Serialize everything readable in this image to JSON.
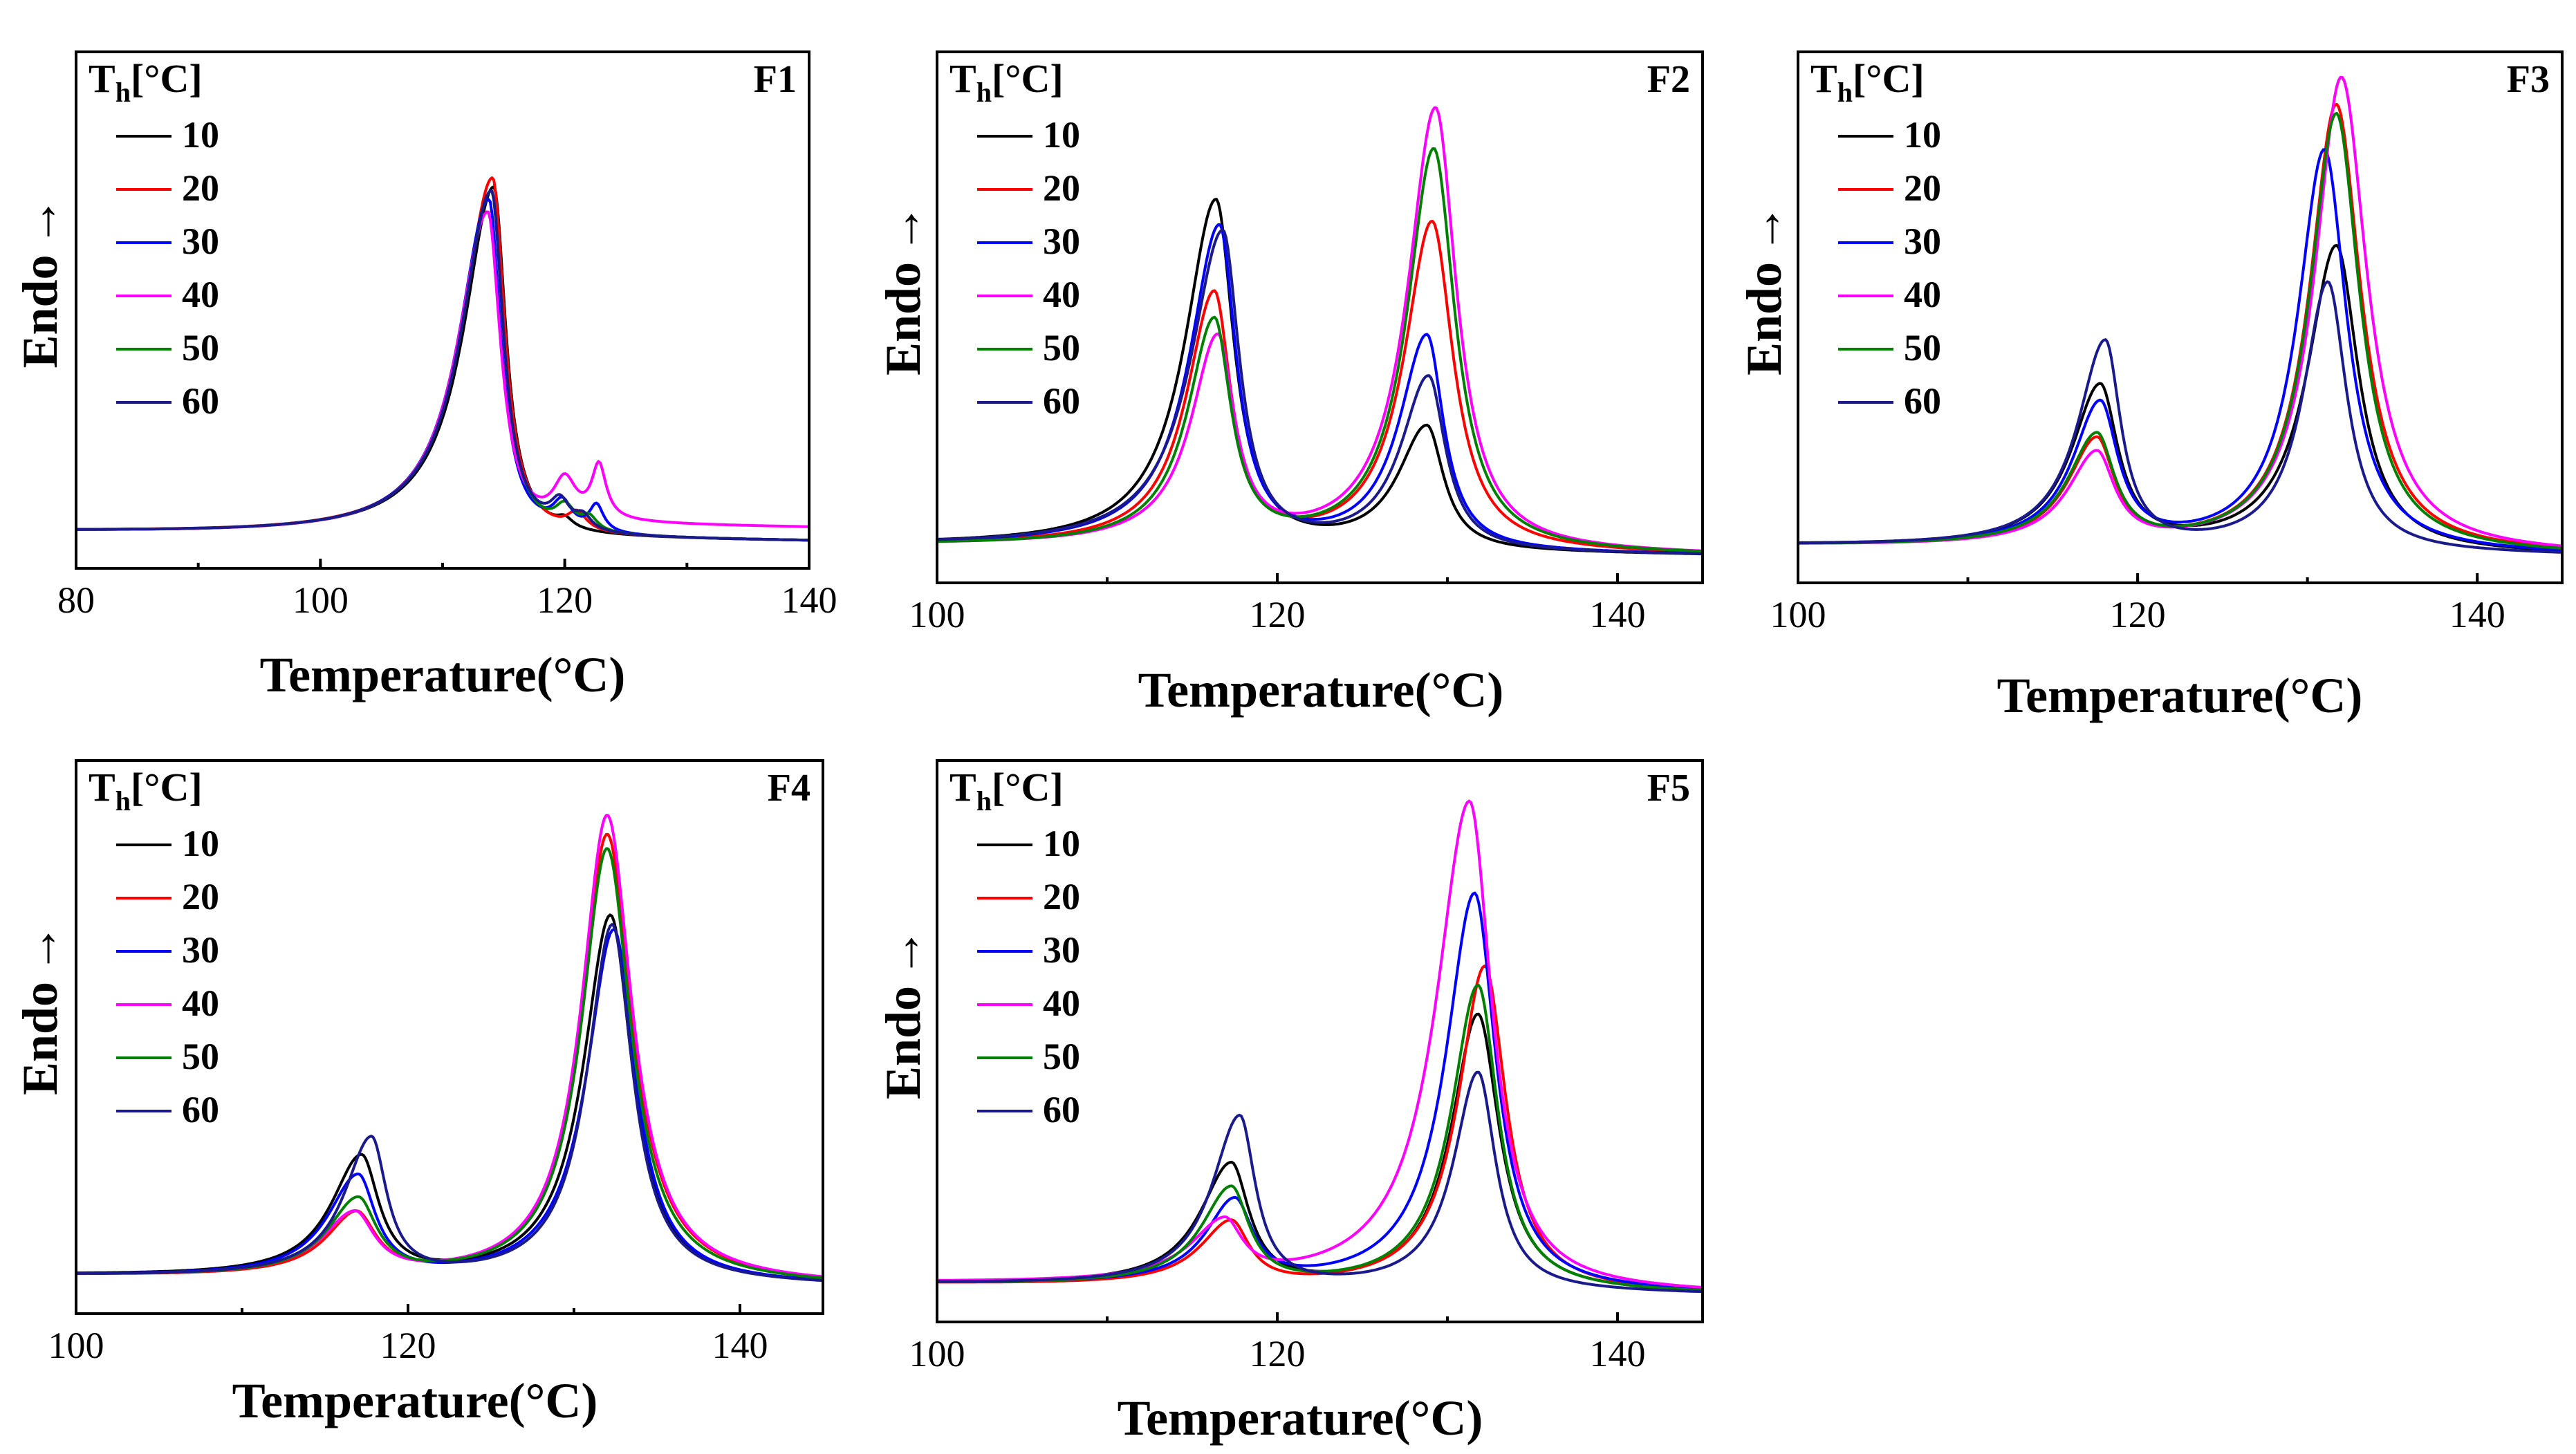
{
  "figure": {
    "legend_title": "T",
    "legend_title_sub": "h",
    "legend_title_unit": "[°C]"
  },
  "chart_data": [
    {
      "type": "line",
      "panel": "F1",
      "xlabel": "Temperature(°C)",
      "ylabel": "Endo",
      "ylabel_arrow": "→",
      "xlim": [
        80,
        140
      ],
      "xticks": [
        80,
        100,
        120,
        140
      ],
      "ylim": [
        0,
        1
      ],
      "legend_placement": "top-left",
      "series": [
        {
          "name": "10",
          "color": "#000000",
          "bg": 0.0,
          "peaks": [
            {
              "c": 114.2,
              "h": 0.79,
              "w": 3.8,
              "r": 1.5
            },
            {
              "c": 120.0,
              "h": 0.02,
              "w": 1.0,
              "r": 1.0
            }
          ]
        },
        {
          "name": "20",
          "color": "#ff0000",
          "bg": 0.0,
          "peaks": [
            {
              "c": 114.1,
              "h": 0.81,
              "w": 3.8,
              "r": 1.5
            },
            {
              "c": 121.0,
              "h": 0.04,
              "w": 1.2,
              "r": 1.2
            }
          ]
        },
        {
          "name": "30",
          "color": "#0000ff",
          "bg": 0.0,
          "peaks": [
            {
              "c": 113.8,
              "h": 0.76,
              "w": 3.8,
              "r": 1.5
            },
            {
              "c": 119.8,
              "h": 0.06,
              "w": 1.2,
              "r": 1.2
            },
            {
              "c": 122.6,
              "h": 0.06,
              "w": 0.9,
              "r": 0.9
            }
          ]
        },
        {
          "name": "40",
          "color": "#ff00ff",
          "bg": 0.03,
          "peaks": [
            {
              "c": 113.7,
              "h": 0.73,
              "w": 3.8,
              "r": 1.6
            },
            {
              "c": 120.0,
              "h": 0.09,
              "w": 1.4,
              "r": 1.4
            },
            {
              "c": 122.8,
              "h": 0.12,
              "w": 0.9,
              "r": 0.9
            }
          ]
        },
        {
          "name": "50",
          "color": "#008000",
          "bg": 0.0,
          "peaks": [
            {
              "c": 114.0,
              "h": 0.78,
              "w": 3.8,
              "r": 1.5
            },
            {
              "c": 120.0,
              "h": 0.05,
              "w": 1.2,
              "r": 1.2
            },
            {
              "c": 122.0,
              "h": 0.03,
              "w": 1.0,
              "r": 1.0
            }
          ]
        },
        {
          "name": "60",
          "color": "#1a1a8c",
          "bg": 0.0,
          "peaks": [
            {
              "c": 114.0,
              "h": 0.78,
              "w": 3.8,
              "r": 1.5
            },
            {
              "c": 119.6,
              "h": 0.06,
              "w": 1.2,
              "r": 1.2
            },
            {
              "c": 121.5,
              "h": 0.03,
              "w": 1.0,
              "r": 1.0
            }
          ]
        }
      ]
    },
    {
      "type": "line",
      "panel": "F2",
      "xlabel": "Temperature(°C)",
      "ylabel": "Endo",
      "ylabel_arrow": "→",
      "xlim": [
        100,
        145
      ],
      "xticks": [
        100,
        120,
        140
      ],
      "ylim": [
        0,
        1
      ],
      "legend_placement": "top-left",
      "series": [
        {
          "name": "10",
          "color": "#000000",
          "bg": 0.0,
          "peaks": [
            {
              "c": 116.4,
              "h": 0.76,
              "w": 2.8,
              "r": 1.6
            },
            {
              "c": 128.8,
              "h": 0.27,
              "w": 2.6,
              "r": 1.5
            }
          ]
        },
        {
          "name": "20",
          "color": "#ff0000",
          "bg": 0.0,
          "peaks": [
            {
              "c": 116.3,
              "h": 0.55,
              "w": 2.5,
              "r": 1.5
            },
            {
              "c": 129.1,
              "h": 0.72,
              "w": 2.5,
              "r": 1.9
            }
          ]
        },
        {
          "name": "30",
          "color": "#0000ff",
          "bg": 0.0,
          "peaks": [
            {
              "c": 116.6,
              "h": 0.7,
              "w": 2.7,
              "r": 1.5
            },
            {
              "c": 128.8,
              "h": 0.47,
              "w": 2.5,
              "r": 1.5
            }
          ]
        },
        {
          "name": "40",
          "color": "#ff00ff",
          "bg": 0.0,
          "peaks": [
            {
              "c": 116.5,
              "h": 0.45,
              "w": 2.4,
              "r": 1.5
            },
            {
              "c": 129.3,
              "h": 0.97,
              "w": 2.5,
              "r": 1.9
            }
          ]
        },
        {
          "name": "50",
          "color": "#008000",
          "bg": 0.0,
          "peaks": [
            {
              "c": 116.3,
              "h": 0.49,
              "w": 2.4,
              "r": 1.5
            },
            {
              "c": 129.2,
              "h": 0.88,
              "w": 2.4,
              "r": 1.9
            }
          ]
        },
        {
          "name": "60",
          "color": "#1a1a8c",
          "bg": 0.0,
          "peaks": [
            {
              "c": 116.8,
              "h": 0.69,
              "w": 2.9,
              "r": 1.5
            },
            {
              "c": 128.9,
              "h": 0.38,
              "w": 2.5,
              "r": 1.5
            }
          ]
        }
      ]
    },
    {
      "type": "line",
      "panel": "F3",
      "xlabel": "Temperature(°C)",
      "ylabel": "Endo",
      "ylabel_arrow": "→",
      "xlim": [
        100,
        145
      ],
      "xticks": [
        100,
        120,
        140
      ],
      "ylim": [
        0,
        1
      ],
      "legend_placement": "top-left",
      "series": [
        {
          "name": "10",
          "color": "#000000",
          "bg": 0.0,
          "peaks": [
            {
              "c": 117.8,
              "h": 0.35,
              "w": 2.6,
              "r": 1.6
            },
            {
              "c": 131.7,
              "h": 0.67,
              "w": 2.6,
              "r": 2.0
            }
          ]
        },
        {
          "name": "20",
          "color": "#ff0000",
          "bg": 0.0,
          "peaks": [
            {
              "c": 117.6,
              "h": 0.23,
              "w": 2.6,
              "r": 1.6
            },
            {
              "c": 131.7,
              "h": 0.98,
              "w": 2.4,
              "r": 2.2
            }
          ]
        },
        {
          "name": "30",
          "color": "#0000ff",
          "bg": 0.0,
          "peaks": [
            {
              "c": 117.8,
              "h": 0.31,
              "w": 2.5,
              "r": 1.6
            },
            {
              "c": 131.0,
              "h": 0.88,
              "w": 2.4,
              "r": 2.0
            }
          ]
        },
        {
          "name": "40",
          "color": "#ff00ff",
          "bg": 0.0,
          "peaks": [
            {
              "c": 117.6,
              "h": 0.2,
              "w": 2.6,
              "r": 1.6
            },
            {
              "c": 132.0,
              "h": 1.04,
              "w": 2.4,
              "r": 2.3
            }
          ]
        },
        {
          "name": "50",
          "color": "#008000",
          "bg": 0.0,
          "peaks": [
            {
              "c": 117.6,
              "h": 0.24,
              "w": 2.6,
              "r": 1.6
            },
            {
              "c": 131.7,
              "h": 0.96,
              "w": 2.4,
              "r": 2.1
            }
          ]
        },
        {
          "name": "60",
          "color": "#1a1a8c",
          "bg": 0.0,
          "peaks": [
            {
              "c": 118.1,
              "h": 0.45,
              "w": 2.5,
              "r": 1.4
            },
            {
              "c": 131.2,
              "h": 0.59,
              "w": 2.2,
              "r": 1.7
            }
          ]
        }
      ]
    },
    {
      "type": "line",
      "panel": "F4",
      "xlabel": "Temperature(°C)",
      "ylabel": "Endo",
      "ylabel_arrow": "→",
      "xlim": [
        100,
        145
      ],
      "xticks": [
        100,
        120,
        140
      ],
      "ylim": [
        0,
        1
      ],
      "legend_placement": "top-left",
      "series": [
        {
          "name": "10",
          "color": "#000000",
          "bg": 0.0,
          "peaks": [
            {
              "c": 117.2,
              "h": 0.25,
              "w": 2.8,
              "r": 1.6
            },
            {
              "c": 132.2,
              "h": 0.77,
              "w": 2.5,
              "r": 2.0
            }
          ]
        },
        {
          "name": "20",
          "color": "#ff0000",
          "bg": 0.0,
          "peaks": [
            {
              "c": 116.9,
              "h": 0.13,
              "w": 2.8,
              "r": 1.8
            },
            {
              "c": 132.0,
              "h": 0.94,
              "w": 2.4,
              "r": 2.3
            }
          ]
        },
        {
          "name": "30",
          "color": "#0000ff",
          "bg": 0.0,
          "peaks": [
            {
              "c": 117.0,
              "h": 0.21,
              "w": 2.8,
              "r": 1.6
            },
            {
              "c": 132.4,
              "h": 0.74,
              "w": 2.5,
              "r": 2.0
            }
          ]
        },
        {
          "name": "40",
          "color": "#ff00ff",
          "bg": 0.0,
          "peaks": [
            {
              "c": 116.8,
              "h": 0.13,
              "w": 3.0,
              "r": 1.8
            },
            {
              "c": 132.0,
              "h": 0.98,
              "w": 2.4,
              "r": 2.3
            }
          ]
        },
        {
          "name": "50",
          "color": "#008000",
          "bg": 0.0,
          "peaks": [
            {
              "c": 117.0,
              "h": 0.16,
              "w": 2.8,
              "r": 1.7
            },
            {
              "c": 132.0,
              "h": 0.91,
              "w": 2.4,
              "r": 2.2
            }
          ]
        },
        {
          "name": "60",
          "color": "#1a1a8c",
          "bg": 0.0,
          "peaks": [
            {
              "c": 117.8,
              "h": 0.29,
              "w": 2.5,
              "r": 1.4
            },
            {
              "c": 132.3,
              "h": 0.75,
              "w": 2.3,
              "r": 1.9
            }
          ]
        }
      ]
    },
    {
      "type": "line",
      "panel": "F5",
      "xlabel": "Temperature(°C)",
      "ylabel": "Endo",
      "ylabel_arrow": "→",
      "xlim": [
        100,
        145
      ],
      "xticks": [
        100,
        120,
        140
      ],
      "ylim": [
        0,
        1
      ],
      "legend_placement": "top-left",
      "series": [
        {
          "name": "10",
          "color": "#000000",
          "bg": 0.0,
          "peaks": [
            {
              "c": 117.3,
              "h": 0.25,
              "w": 2.8,
              "r": 1.6
            },
            {
              "c": 131.8,
              "h": 0.57,
              "w": 2.4,
              "r": 1.9
            }
          ]
        },
        {
          "name": "20",
          "color": "#ff0000",
          "bg": 0.0,
          "peaks": [
            {
              "c": 117.3,
              "h": 0.13,
              "w": 2.8,
              "r": 1.6
            },
            {
              "c": 132.2,
              "h": 0.67,
              "w": 2.4,
              "r": 1.9
            }
          ]
        },
        {
          "name": "30",
          "color": "#0000ff",
          "bg": 0.0,
          "peaks": [
            {
              "c": 117.5,
              "h": 0.17,
              "w": 2.6,
              "r": 1.6
            },
            {
              "c": 131.6,
              "h": 0.82,
              "w": 2.6,
              "r": 1.9
            }
          ]
        },
        {
          "name": "40",
          "color": "#ff00ff",
          "bg": 0.0,
          "peaks": [
            {
              "c": 116.9,
              "h": 0.12,
              "w": 3.0,
              "r": 1.6
            },
            {
              "c": 131.3,
              "h": 1.01,
              "w": 3.0,
              "r": 2.0
            }
          ]
        },
        {
          "name": "50",
          "color": "#008000",
          "bg": 0.0,
          "peaks": [
            {
              "c": 117.3,
              "h": 0.2,
              "w": 2.7,
              "r": 1.6
            },
            {
              "c": 131.8,
              "h": 0.63,
              "w": 2.4,
              "r": 1.8
            }
          ]
        },
        {
          "name": "60",
          "color": "#1a1a8c",
          "bg": 0.0,
          "peaks": [
            {
              "c": 117.8,
              "h": 0.35,
              "w": 2.5,
              "r": 1.4
            },
            {
              "c": 131.8,
              "h": 0.45,
              "w": 2.2,
              "r": 1.6
            }
          ]
        }
      ]
    }
  ]
}
